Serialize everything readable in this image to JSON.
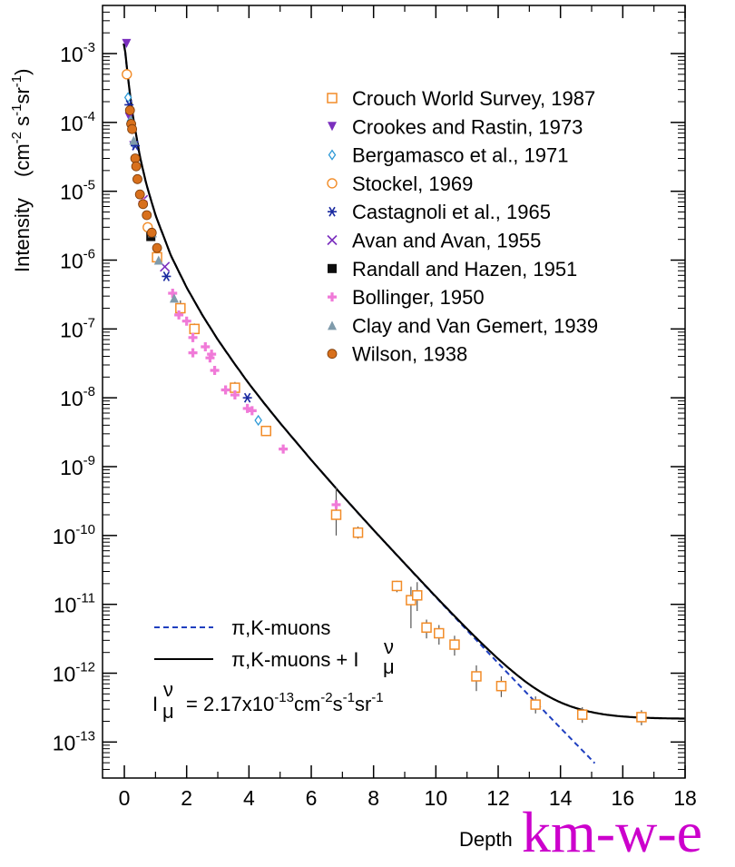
{
  "chart_data": {
    "type": "scatter",
    "xlabel": "Depth",
    "x_unit": "km-w-e",
    "ylabel": "Intensity",
    "ylabel_unit": "(cm⁻² s⁻¹ sr⁻¹)",
    "xlim": [
      -0.7,
      18
    ],
    "ylim": [
      3e-14,
      0.005
    ],
    "yscale": "log",
    "x_ticks": [
      0,
      2,
      4,
      6,
      8,
      10,
      12,
      14,
      16,
      18
    ],
    "y_ticks": [
      {
        "value": 0.001,
        "base": "10",
        "exp": "-3"
      },
      {
        "value": 0.0001,
        "base": "10",
        "exp": "-4"
      },
      {
        "value": 1e-05,
        "base": "10",
        "exp": "-5"
      },
      {
        "value": 1e-06,
        "base": "10",
        "exp": "-6"
      },
      {
        "value": 1e-07,
        "base": "10",
        "exp": "-7"
      },
      {
        "value": 1e-08,
        "base": "10",
        "exp": "-8"
      },
      {
        "value": 1e-09,
        "base": "10",
        "exp": "-9"
      },
      {
        "value": 1e-10,
        "base": "10",
        "exp": "-10"
      },
      {
        "value": 1e-11,
        "base": "10",
        "exp": "-11"
      },
      {
        "value": 1e-12,
        "base": "10",
        "exp": "-12"
      },
      {
        "value": 1e-13,
        "base": "10",
        "exp": "-13"
      }
    ],
    "grid": false,
    "legend_position": "top-right",
    "series": [
      {
        "name": "Crouch World Survey, 1987",
        "marker": "open-square",
        "color": "#f28c28",
        "points": [
          [
            1.05,
            1.1e-06,
            1.3e-06,
            9e-07
          ],
          [
            1.8,
            2e-07,
            2.6e-07,
            1.6e-07
          ],
          [
            2.25,
            1e-07,
            1.2e-07,
            8.5e-08
          ],
          [
            3.55,
            1.4e-08,
            1.7e-08,
            1.1e-08
          ],
          [
            4.55,
            3.3e-09,
            3.8e-09,
            2.8e-09
          ],
          [
            6.8,
            2e-10,
            5e-10,
            1e-10
          ],
          [
            7.5,
            1.1e-10,
            1.35e-10,
            9e-11
          ],
          [
            8.75,
            1.85e-11,
            2.2e-11,
            1.5e-11
          ],
          [
            9.2,
            1.15e-11,
            1.8e-11,
            4.5e-12
          ],
          [
            9.4,
            1.35e-11,
            2.1e-11,
            8e-12
          ],
          [
            9.7,
            4.6e-12,
            6e-12,
            3.2e-12
          ],
          [
            10.1,
            3.8e-12,
            5e-12,
            2.6e-12
          ],
          [
            10.6,
            2.6e-12,
            3.5e-12,
            1.8e-12
          ],
          [
            11.3,
            9e-13,
            1.3e-12,
            5.5e-13
          ],
          [
            12.1,
            6.5e-13,
            9e-13,
            4.5e-13
          ],
          [
            13.2,
            3.5e-13,
            4.6e-13,
            2.6e-13
          ],
          [
            14.7,
            2.5e-13,
            3.2e-13,
            1.9e-13
          ],
          [
            16.6,
            2.3e-13,
            2.9e-13,
            1.75e-13
          ]
        ]
      },
      {
        "name": "Crookes and Rastin, 1973",
        "marker": "filled-triangle-down",
        "color": "#7b2fbe",
        "points": [
          [
            0.07,
            0.0014
          ],
          [
            0.16,
            0.00012
          ],
          [
            0.3,
            4.6e-05
          ]
        ]
      },
      {
        "name": "Bergamasco et al., 1971",
        "marker": "open-diamond",
        "color": "#2f9ad6",
        "points": [
          [
            0.12,
            0.00023
          ],
          [
            0.2,
            0.000105
          ],
          [
            0.3,
            5e-05
          ],
          [
            4.3,
            4.7e-09
          ]
        ]
      },
      {
        "name": "Stockel, 1969",
        "marker": "open-circle",
        "color": "#f28c28",
        "points": [
          [
            0.08,
            0.0005
          ],
          [
            0.75,
            3e-06
          ]
        ]
      },
      {
        "name": "Castagnoli et al., 1965",
        "marker": "asterisk",
        "color": "#1a2aa0",
        "points": [
          [
            0.15,
            0.00018
          ],
          [
            0.35,
            4.6e-05
          ],
          [
            1.35,
            5.8e-07
          ],
          [
            3.95,
            1e-08
          ]
        ]
      },
      {
        "name": "Avan and Avan, 1955",
        "marker": "cross",
        "color": "#7b2fbe",
        "points": [
          [
            0.6,
            7.5e-06
          ],
          [
            1.3,
            8e-07
          ]
        ]
      },
      {
        "name": "Randall and Hazen, 1951",
        "marker": "filled-square",
        "color": "#0d0d0d",
        "points": [
          [
            0.85,
            2.2e-06
          ]
        ]
      },
      {
        "name": "Bollinger, 1950",
        "marker": "plus",
        "color": "#f07ad8",
        "points": [
          [
            0.6,
            7e-06
          ],
          [
            1.55,
            3.3e-07
          ],
          [
            1.75,
            1.6e-07
          ],
          [
            2.0,
            1.3e-07
          ],
          [
            2.2,
            7.5e-08
          ],
          [
            2.2,
            4.5e-08
          ],
          [
            2.6,
            5.5e-08
          ],
          [
            2.75,
            3.8e-08
          ],
          [
            2.8,
            4.3e-08
          ],
          [
            2.9,
            2.5e-08
          ],
          [
            3.25,
            1.3e-08
          ],
          [
            3.55,
            1.1e-08
          ],
          [
            3.95,
            7e-09
          ],
          [
            4.1,
            6.5e-09
          ],
          [
            5.1,
            1.8e-09
          ],
          [
            6.8,
            2.8e-10
          ]
        ]
      },
      {
        "name": "Clay and Van Gemert, 1939",
        "marker": "filled-triangle-up",
        "color": "#7f9bab",
        "points": [
          [
            0.2,
            0.00011
          ],
          [
            0.3,
            5.5e-05
          ],
          [
            0.9,
            2.5e-06
          ],
          [
            1.1,
            1e-06
          ],
          [
            1.6,
            2.8e-07
          ]
        ]
      },
      {
        "name": "Wilson, 1938",
        "marker": "filled-circle",
        "color": "#d8701c",
        "points": [
          [
            0.18,
            0.00015
          ],
          [
            0.22,
            9.5e-05
          ],
          [
            0.25,
            8e-05
          ],
          [
            0.35,
            3e-05
          ],
          [
            0.38,
            2.3e-05
          ],
          [
            0.42,
            1.5e-05
          ],
          [
            0.5,
            9e-06
          ],
          [
            0.6,
            6.5e-06
          ],
          [
            0.72,
            4.5e-06
          ],
          [
            0.88,
            2.5e-06
          ],
          [
            1.05,
            1.5e-06
          ]
        ]
      }
    ],
    "curves": [
      {
        "name": "π,K-muons",
        "style": "dashed",
        "color": "#1f3fbf"
      },
      {
        "name": "π,K-muons + I_μ^ν",
        "style": "solid",
        "color": "#000000"
      }
    ],
    "annotation": {
      "lhs": "I",
      "lhs_sup": "ν",
      "lhs_sub": "μ",
      "rhs": "= 2.17x10",
      "exp1": "-13",
      "unit1": "cm",
      "exp2": "-2",
      "unit2": "s",
      "exp3": "-1",
      "unit3": "sr",
      "exp4": "-1"
    },
    "neutrino_floor": 2.17e-13
  },
  "legend_curve_labels": {
    "dashed": "π,K-muons",
    "solid_main": "π,K-muons + I",
    "solid_sup": "ν",
    "solid_sub": "μ"
  }
}
